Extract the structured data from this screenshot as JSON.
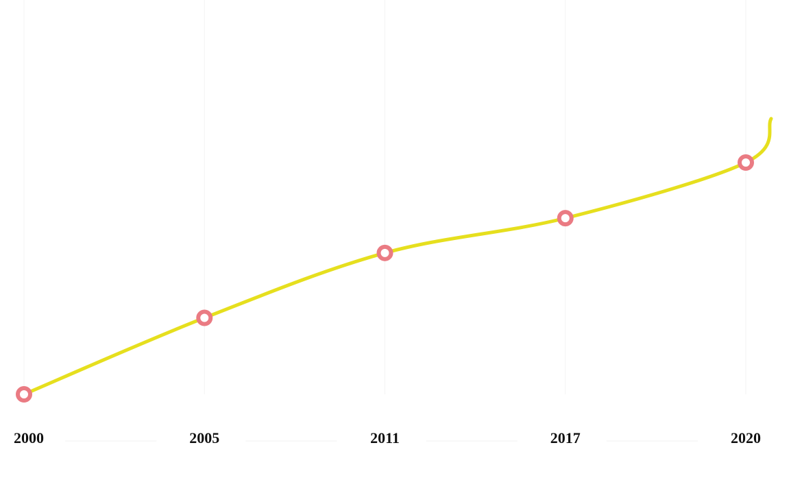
{
  "chart_data": {
    "type": "line",
    "categories": [
      "2000",
      "2005",
      "2011",
      "2017",
      "2020"
    ],
    "values": [
      0,
      33,
      61,
      76,
      100
    ],
    "color": "#e6df1e",
    "marker_color": "#ea7b83",
    "grid": true
  }
}
